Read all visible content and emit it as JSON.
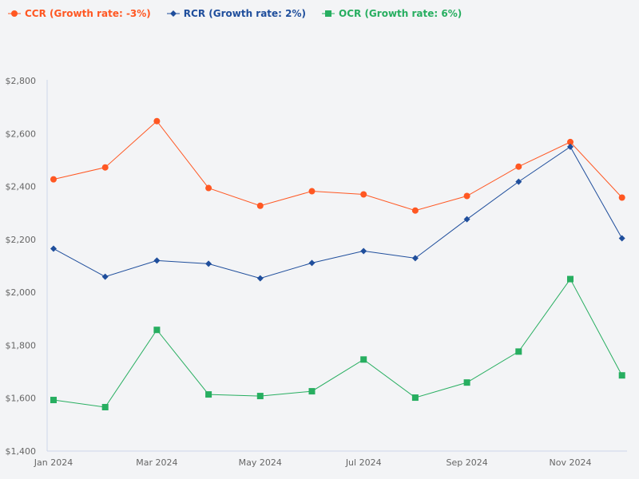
{
  "chart_data": {
    "type": "line",
    "categories": [
      "Jan 2024",
      "Feb 2024",
      "Mar 2024",
      "Apr 2024",
      "May 2024",
      "Jun 2024",
      "Jul 2024",
      "Aug 2024",
      "Sep 2024",
      "Oct 2024",
      "Nov 2024",
      "Dec 2024"
    ],
    "x_tick_labels": [
      "Jan 2024",
      "Mar 2024",
      "May 2024",
      "Jul 2024",
      "Sep 2024",
      "Nov 2024"
    ],
    "y_tick_labels": [
      "$1,400",
      "$1,600",
      "$1,800",
      "$2,000",
      "$2,200",
      "$2,400",
      "$2,600",
      "$2,800"
    ],
    "ylim": [
      1400,
      2800
    ],
    "grid": false,
    "legend_position": "top-left",
    "series": [
      {
        "name": "CCR (Growth rate: -3%)",
        "color": "#ff5722",
        "marker": "circle",
        "values": [
          2427,
          2472,
          2647,
          2394,
          2327,
          2382,
          2370,
          2309,
          2364,
          2475,
          2568,
          2358
        ]
      },
      {
        "name": "RCR (Growth rate: 2%)",
        "color": "#1f4e9c",
        "marker": "diamond",
        "values": [
          2165,
          2059,
          2120,
          2108,
          2053,
          2111,
          2156,
          2129,
          2276,
          2418,
          2550,
          2204
        ]
      },
      {
        "name": "OCR (Growth rate: 6%)",
        "color": "#27ae60",
        "marker": "square",
        "values": [
          1593,
          1566,
          1858,
          1614,
          1608,
          1626,
          1746,
          1602,
          1659,
          1776,
          2050,
          1686
        ]
      }
    ]
  }
}
